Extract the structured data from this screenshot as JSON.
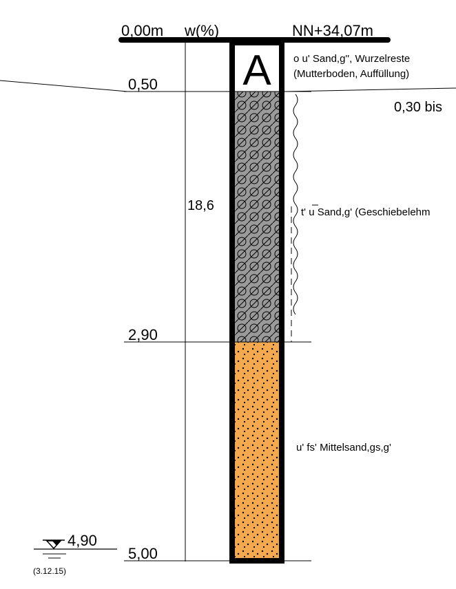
{
  "header": {
    "depth_start": "0,00m",
    "water_content_label": "w(%)",
    "elevation": "NN+34,07m"
  },
  "borehole_label": "A",
  "depth_marks": {
    "d1": "0,50",
    "d2": "2,90",
    "d3": "5,00"
  },
  "water_content_value": "18,6",
  "layers": [
    {
      "description_line1": "o u' Sand,g'', Wurzelreste",
      "description_line2": "(Mutterboden, Auffüllung)"
    },
    {
      "description": "t' u Sand,g' (Geschiebelehm"
    },
    {
      "description": "u' fs' Mittelsand,gs,g'"
    }
  ],
  "side_note": "0,30 bis",
  "groundwater": {
    "depth": "4,90",
    "date": "(3.12.15)"
  },
  "colors": {
    "fill_topsoil": "#ffffff",
    "fill_till": "#9a9a9a",
    "fill_sand": "#f4a84f",
    "line": "#000000"
  }
}
